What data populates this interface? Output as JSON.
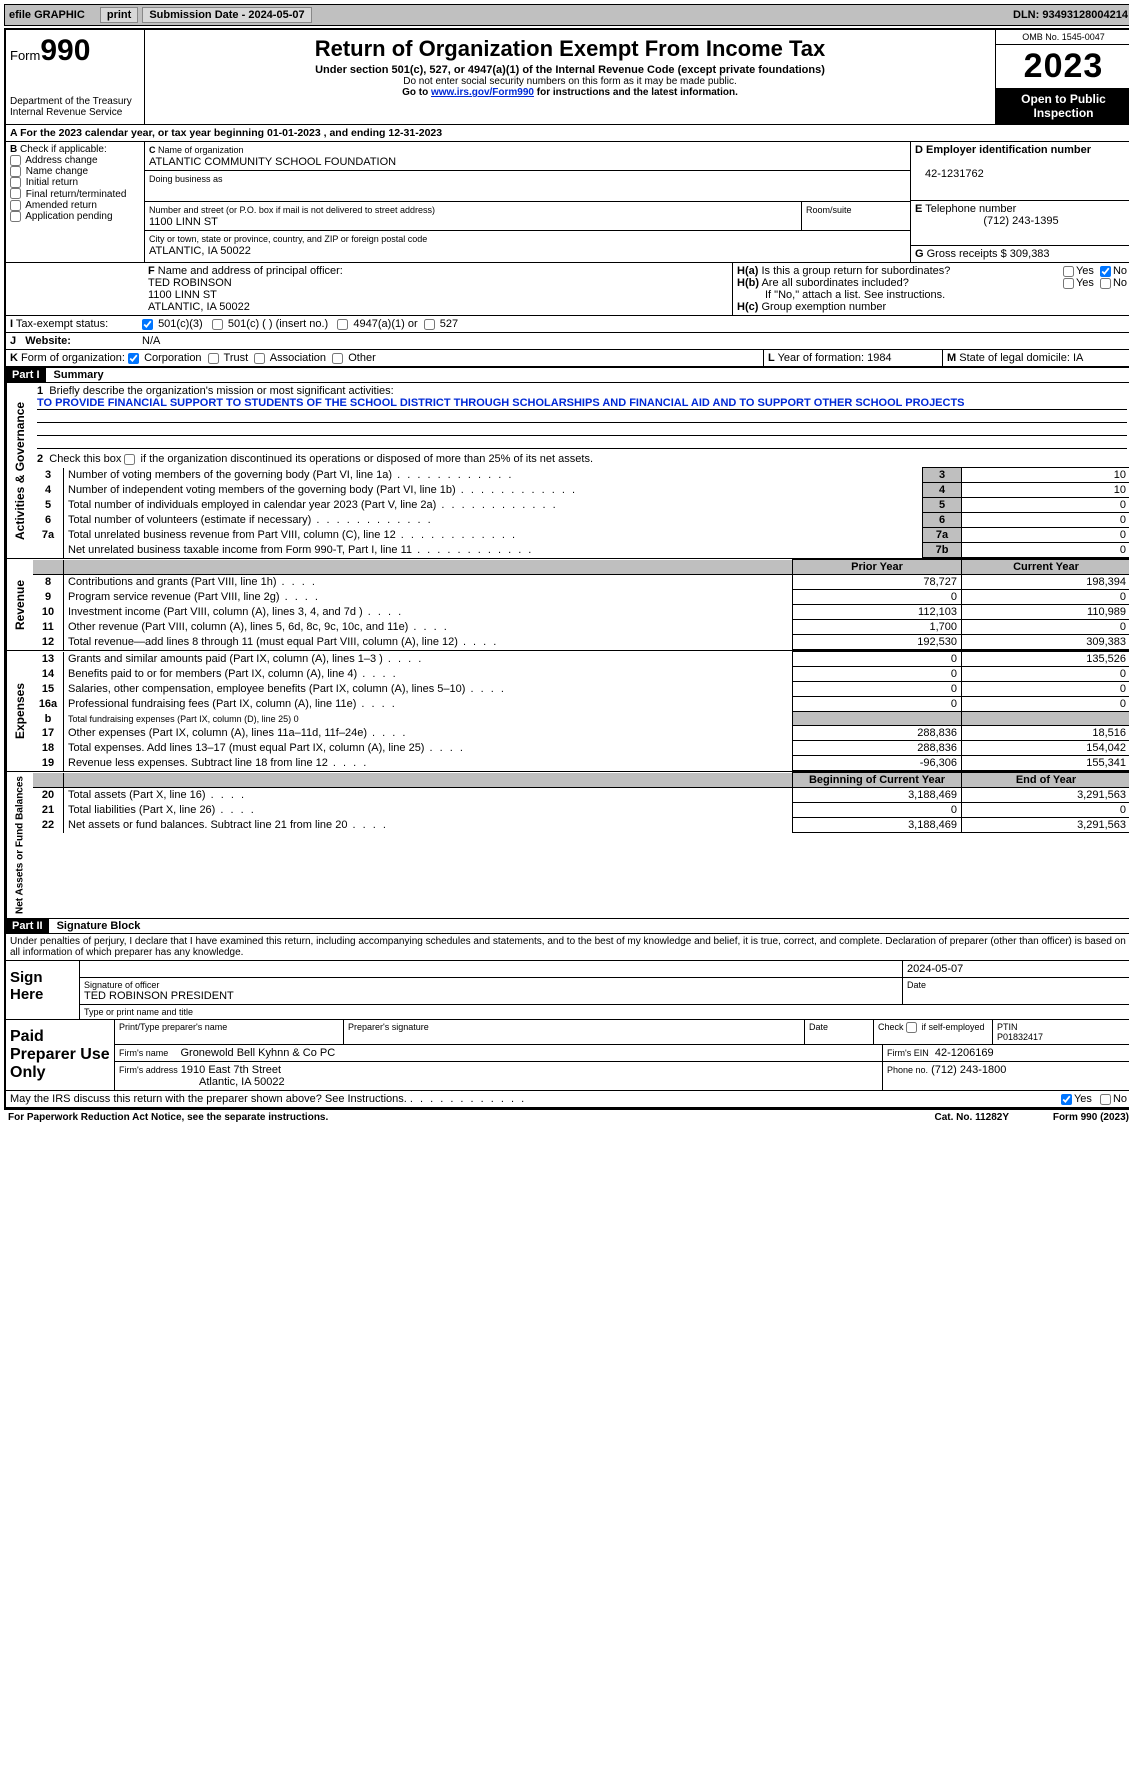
{
  "topbar": {
    "efile": "efile GRAPHIC",
    "print": "print",
    "submission_label": "Submission Date - 2024-05-07",
    "dln": "DLN: 93493128004214"
  },
  "header": {
    "form_prefix": "Form",
    "form_number": "990",
    "dept": "Department of the Treasury\nInternal Revenue Service",
    "title": "Return of Organization Exempt From Income Tax",
    "sub": "Under section 501(c), 527, or 4947(a)(1) of the Internal Revenue Code (except private foundations)",
    "note1": "Do not enter social security numbers on this form as it may be made public.",
    "note2_pre": "Go to ",
    "note2_link": "www.irs.gov/Form990",
    "note2_post": " for instructions and the latest information.",
    "omb": "OMB No. 1545-0047",
    "year": "2023",
    "public": "Open to Public Inspection"
  },
  "a_line": {
    "text_pre": "For the 2023 calendar year, or tax year beginning ",
    "begin": "01-01-2023",
    "mid": " , and ending ",
    "end": "12-31-2023"
  },
  "b": {
    "label": "Check if applicable:",
    "items": [
      "Address change",
      "Name change",
      "Initial return",
      "Final return/terminated",
      "Amended return",
      "Application pending"
    ]
  },
  "c": {
    "name_label": "Name of organization",
    "name": "ATLANTIC COMMUNITY SCHOOL FOUNDATION",
    "dba_label": "Doing business as",
    "dba": "",
    "street_label": "Number and street (or P.O. box if mail is not delivered to street address)",
    "room_label": "Room/suite",
    "street": "1100 LINN ST",
    "city_label": "City or town, state or province, country, and ZIP or foreign postal code",
    "city": "ATLANTIC, IA  50022"
  },
  "d": {
    "label": "Employer identification number",
    "value": "42-1231762"
  },
  "e": {
    "label": "Telephone number",
    "value": "(712) 243-1395"
  },
  "g": {
    "label": "Gross receipts $",
    "value": "309,383"
  },
  "f": {
    "label": "Name and address of principal officer:",
    "name": "TED ROBINSON",
    "street": "1100 LINN ST",
    "city": "ATLANTIC, IA  50022"
  },
  "h": {
    "a": "Is this a group return for subordinates?",
    "a_no": true,
    "b": "Are all subordinates included?",
    "b_note": "If \"No,\" attach a list. See instructions.",
    "c": "Group exemption number"
  },
  "i": {
    "label": "Tax-exempt status:",
    "c3": "501(c)(3)",
    "c": "501(c) (  ) (insert no.)",
    "a1": "4947(a)(1) or",
    "s527": "527"
  },
  "j": {
    "label": "Website:",
    "value": "N/A"
  },
  "k": {
    "label": "Form of organization:",
    "corp": "Corporation",
    "trust": "Trust",
    "assoc": "Association",
    "other": "Other"
  },
  "l": {
    "label": "Year of formation:",
    "value": "1984"
  },
  "m": {
    "label": "State of legal domicile:",
    "value": "IA"
  },
  "part1": {
    "hdr": "Part I",
    "title": "Summary",
    "sections": {
      "gov": "Activities & Governance",
      "rev": "Revenue",
      "exp": "Expenses",
      "net": "Net Assets or Fund Balances"
    },
    "line1_label": "Briefly describe the organization's mission or most significant activities:",
    "line1_text": "TO PROVIDE FINANCIAL SUPPORT TO STUDENTS OF THE SCHOOL DISTRICT THROUGH SCHOLARSHIPS AND FINANCIAL AID AND TO SUPPORT OTHER SCHOOL PROJECTS",
    "line2": "Check this box       if the organization discontinued its operations or disposed of more than 25% of its net assets.",
    "gov_lines": [
      {
        "n": "3",
        "d": "Number of voting members of the governing body (Part VI, line 1a)",
        "box": "3",
        "v": "10"
      },
      {
        "n": "4",
        "d": "Number of independent voting members of the governing body (Part VI, line 1b)",
        "box": "4",
        "v": "10"
      },
      {
        "n": "5",
        "d": "Total number of individuals employed in calendar year 2023 (Part V, line 2a)",
        "box": "5",
        "v": "0"
      },
      {
        "n": "6",
        "d": "Total number of volunteers (estimate if necessary)",
        "box": "6",
        "v": "0"
      },
      {
        "n": "7a",
        "d": "Total unrelated business revenue from Part VIII, column (C), line 12",
        "box": "7a",
        "v": "0"
      },
      {
        "n": "",
        "d": "Net unrelated business taxable income from Form 990-T, Part I, line 11",
        "box": "7b",
        "v": "0"
      }
    ],
    "py_hdr": "Prior Year",
    "cy_hdr": "Current Year",
    "rev_lines": [
      {
        "n": "8",
        "d": "Contributions and grants (Part VIII, line 1h)",
        "py": "78,727",
        "cy": "198,394"
      },
      {
        "n": "9",
        "d": "Program service revenue (Part VIII, line 2g)",
        "py": "0",
        "cy": "0"
      },
      {
        "n": "10",
        "d": "Investment income (Part VIII, column (A), lines 3, 4, and 7d )",
        "py": "112,103",
        "cy": "110,989"
      },
      {
        "n": "11",
        "d": "Other revenue (Part VIII, column (A), lines 5, 6d, 8c, 9c, 10c, and 11e)",
        "py": "1,700",
        "cy": "0"
      },
      {
        "n": "12",
        "d": "Total revenue—add lines 8 through 11 (must equal Part VIII, column (A), line 12)",
        "py": "192,530",
        "cy": "309,383"
      }
    ],
    "exp_lines": [
      {
        "n": "13",
        "d": "Grants and similar amounts paid (Part IX, column (A), lines 1–3 )",
        "py": "0",
        "cy": "135,526"
      },
      {
        "n": "14",
        "d": "Benefits paid to or for members (Part IX, column (A), line 4)",
        "py": "0",
        "cy": "0"
      },
      {
        "n": "15",
        "d": "Salaries, other compensation, employee benefits (Part IX, column (A), lines 5–10)",
        "py": "0",
        "cy": "0"
      },
      {
        "n": "16a",
        "d": "Professional fundraising fees (Part IX, column (A), line 11e)",
        "py": "0",
        "cy": "0"
      },
      {
        "n": "b",
        "d": "Total fundraising expenses (Part IX, column (D), line 25) 0",
        "py": "",
        "cy": "",
        "grey": true
      },
      {
        "n": "17",
        "d": "Other expenses (Part IX, column (A), lines 11a–11d, 11f–24e)",
        "py": "288,836",
        "cy": "18,516"
      },
      {
        "n": "18",
        "d": "Total expenses. Add lines 13–17 (must equal Part IX, column (A), line 25)",
        "py": "288,836",
        "cy": "154,042"
      },
      {
        "n": "19",
        "d": "Revenue less expenses. Subtract line 18 from line 12",
        "py": "-96,306",
        "cy": "155,341"
      }
    ],
    "boy_hdr": "Beginning of Current Year",
    "eoy_hdr": "End of Year",
    "net_lines": [
      {
        "n": "20",
        "d": "Total assets (Part X, line 16)",
        "py": "3,188,469",
        "cy": "3,291,563"
      },
      {
        "n": "21",
        "d": "Total liabilities (Part X, line 26)",
        "py": "0",
        "cy": "0"
      },
      {
        "n": "22",
        "d": "Net assets or fund balances. Subtract line 21 from line 20",
        "py": "3,188,469",
        "cy": "3,291,563"
      }
    ]
  },
  "part2": {
    "hdr": "Part II",
    "title": "Signature Block",
    "decl": "Under penalties of perjury, I declare that I have examined this return, including accompanying schedules and statements, and to the best of my knowledge and belief, it is true, correct, and complete. Declaration of preparer (other than officer) is based on all information of which preparer has any knowledge."
  },
  "sign": {
    "here": "Sign Here",
    "sig_label": "Signature of officer",
    "date": "2024-05-07",
    "name": "TED ROBINSON  PRESIDENT",
    "name_label": "Type or print name and title"
  },
  "paid": {
    "here": "Paid Preparer Use Only",
    "prep_name_label": "Print/Type preparer's name",
    "prep_sig_label": "Preparer's signature",
    "date_label": "Date",
    "self_label": "Check         if self-employed",
    "ptin_label": "PTIN",
    "ptin": "P01832417",
    "firm_name_label": "Firm's name",
    "firm_name": "Gronewold Bell Kyhnn & Co PC",
    "firm_ein_label": "Firm's EIN",
    "firm_ein": "42-1206169",
    "firm_addr_label": "Firm's address",
    "firm_addr1": "1910 East 7th Street",
    "firm_addr2": "Atlantic, IA  50022",
    "phone_label": "Phone no.",
    "phone": "(712) 243-1800"
  },
  "discuss": "May the IRS discuss this return with the preparer shown above? See Instructions.",
  "footer": {
    "left": "For Paperwork Reduction Act Notice, see the separate instructions.",
    "mid": "Cat. No. 11282Y",
    "right": "Form 990 (2023)"
  }
}
